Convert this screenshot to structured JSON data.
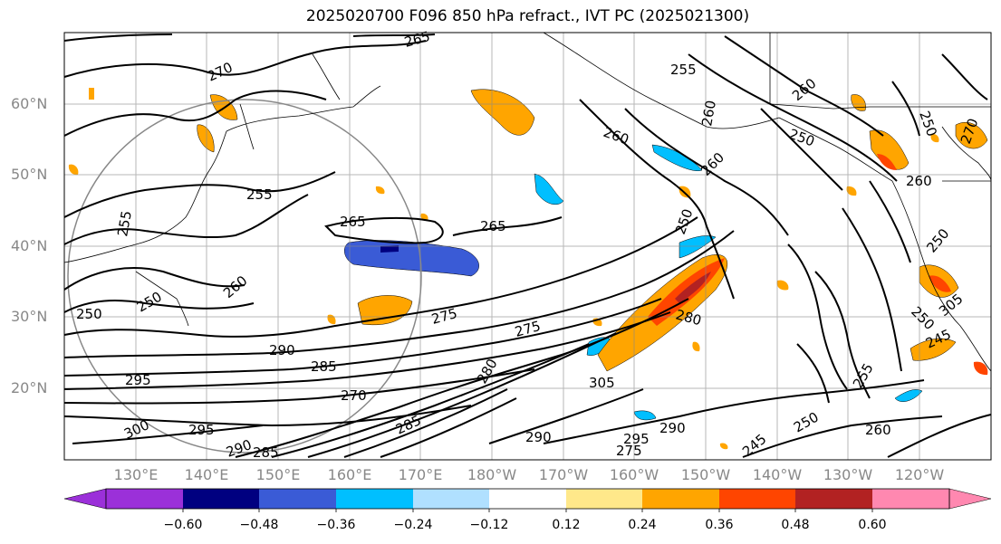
{
  "title": "2025020700 F096 850 hPa refract., IVT PC (2025021300)",
  "lat_labels": [
    "60°N",
    "50°N",
    "40°N",
    "30°N",
    "20°N"
  ],
  "lon_labels": [
    "130°E",
    "140°E",
    "150°E",
    "160°E",
    "170°E",
    "180°W",
    "170°W",
    "160°W",
    "150°W",
    "140°W",
    "130°W",
    "120°W"
  ],
  "colorbar": {
    "ticks": [
      "−0.60",
      "−0.48",
      "−0.36",
      "−0.24",
      "−0.12",
      "0.12",
      "0.24",
      "0.36",
      "0.48",
      "0.60"
    ],
    "colors": [
      "#9b30d9",
      "#000080",
      "#3a5bd6",
      "#00bfff",
      "#b0e0ff",
      "#ffffff",
      "#ffe88a",
      "#ffa500",
      "#ff4500",
      "#b22222",
      "#ff88b0"
    ]
  },
  "contour_labels": [
    "265",
    "270",
    "255",
    "260",
    "250",
    "250",
    "255",
    "255",
    "265",
    "265",
    "260",
    "260",
    "260",
    "250",
    "260",
    "250",
    "260",
    "250",
    "270",
    "275",
    "290",
    "275",
    "280",
    "285",
    "295",
    "270",
    "280",
    "305",
    "300",
    "295",
    "290",
    "285",
    "285",
    "290",
    "295",
    "275",
    "290",
    "245",
    "245",
    "250",
    "305",
    "260",
    "255",
    "250"
  ],
  "colors": {
    "shaded_positive": "#ffa500",
    "shaded_negative": "#00bfff",
    "grid": "#888888"
  }
}
